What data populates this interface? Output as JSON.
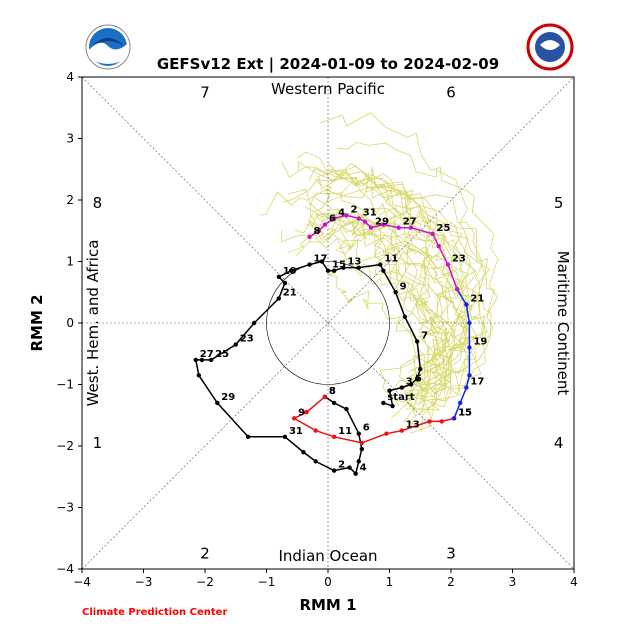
{
  "chart_data": {
    "type": "line",
    "title": "GEFSv12 Ext | 2024-01-09 to 2024-02-09",
    "xlabel": "RMM 1",
    "ylabel": "RMM 2",
    "xlim": [
      -4,
      4
    ],
    "ylim": [
      -4,
      4
    ],
    "xticks": [
      "−4",
      "−3",
      "−2",
      "−1",
      "0",
      "1",
      "2",
      "3",
      "4"
    ],
    "yticks": [
      "−4",
      "−3",
      "−2",
      "−1",
      "0",
      "1",
      "2",
      "3",
      "4"
    ],
    "regions": {
      "top": "Western Pacific",
      "bottom": "Indian Ocean",
      "left": "West. Hem. and Africa",
      "right": "Maritime Continent"
    },
    "phases": [
      "1",
      "2",
      "3",
      "4",
      "5",
      "6",
      "7",
      "8"
    ],
    "credit": "Climate Prediction Center",
    "colors": {
      "ensemble": "#d8d86a",
      "black": "#000000",
      "red": "#ee1111",
      "blue": "#1122ee",
      "magenta": "#cc11cc",
      "credit": "#ff0000"
    },
    "series": [
      {
        "color": "black",
        "points": [
          [
            0.9,
            -1.3,
            "start"
          ],
          [
            1.05,
            -1.35,
            ""
          ],
          [
            1.0,
            -1.1,
            ""
          ],
          [
            1.2,
            -1.05,
            "3"
          ],
          [
            1.35,
            -1.0,
            "5"
          ],
          [
            1.45,
            -0.9,
            ""
          ],
          [
            1.5,
            -0.75,
            ""
          ],
          [
            1.45,
            -0.3,
            "7"
          ],
          [
            1.25,
            0.1,
            ""
          ],
          [
            1.1,
            0.5,
            "9"
          ],
          [
            0.9,
            0.85,
            ""
          ],
          [
            0.85,
            0.95,
            "11"
          ],
          [
            0.5,
            0.9,
            ""
          ],
          [
            0.25,
            0.9,
            "13"
          ],
          [
            0.1,
            0.85,
            ""
          ],
          [
            0.0,
            0.85,
            "15"
          ],
          [
            -0.1,
            1.0,
            ""
          ],
          [
            -0.3,
            0.95,
            "17"
          ],
          [
            -0.6,
            0.85,
            ""
          ],
          [
            -0.8,
            0.75,
            "19"
          ],
          [
            -0.7,
            0.65,
            ""
          ],
          [
            -0.8,
            0.4,
            "21"
          ],
          [
            -1.2,
            0.0,
            ""
          ],
          [
            -1.5,
            -0.35,
            "23"
          ],
          [
            -1.9,
            -0.6,
            "25"
          ],
          [
            -2.05,
            -0.6,
            ""
          ],
          [
            -2.15,
            -0.6,
            "27"
          ],
          [
            -2.1,
            -0.85,
            ""
          ],
          [
            -1.8,
            -1.3,
            "29"
          ],
          [
            -1.3,
            -1.85,
            ""
          ],
          [
            -0.7,
            -1.85,
            "31"
          ],
          [
            -0.4,
            -2.1,
            ""
          ],
          [
            -0.2,
            -2.25,
            ""
          ],
          [
            0.1,
            -2.4,
            "2"
          ],
          [
            0.35,
            -2.35,
            ""
          ],
          [
            0.45,
            -2.45,
            "4"
          ],
          [
            0.5,
            -2.25,
            ""
          ],
          [
            0.55,
            -2.05,
            ""
          ],
          [
            0.5,
            -1.8,
            "6"
          ],
          [
            0.3,
            -1.4,
            ""
          ],
          [
            0.1,
            -1.3,
            ""
          ],
          [
            -0.05,
            -1.2,
            "8"
          ]
        ]
      },
      {
        "color": "red",
        "points": [
          [
            -0.05,
            -1.2,
            "8"
          ],
          [
            -0.35,
            -1.45,
            ""
          ],
          [
            -0.55,
            -1.55,
            "9"
          ],
          [
            -0.2,
            -1.75,
            ""
          ],
          [
            0.1,
            -1.85,
            "11"
          ],
          [
            0.55,
            -1.95,
            ""
          ],
          [
            0.95,
            -1.8,
            ""
          ],
          [
            1.2,
            -1.75,
            "13"
          ],
          [
            1.65,
            -1.6,
            ""
          ],
          [
            1.85,
            -1.6,
            ""
          ],
          [
            2.05,
            -1.55,
            "15"
          ]
        ]
      },
      {
        "color": "blue",
        "points": [
          [
            2.05,
            -1.55,
            "15"
          ],
          [
            2.15,
            -1.3,
            ""
          ],
          [
            2.25,
            -1.05,
            "17"
          ],
          [
            2.3,
            -0.85,
            ""
          ],
          [
            2.3,
            -0.4,
            "19"
          ],
          [
            2.3,
            0.0,
            ""
          ],
          [
            2.25,
            0.3,
            "21"
          ],
          [
            2.1,
            0.55,
            ""
          ]
        ]
      },
      {
        "color": "magenta",
        "points": [
          [
            2.1,
            0.55,
            ""
          ],
          [
            1.95,
            0.95,
            "23"
          ],
          [
            1.8,
            1.25,
            ""
          ],
          [
            1.7,
            1.45,
            "25"
          ],
          [
            1.35,
            1.55,
            ""
          ],
          [
            1.15,
            1.55,
            "27"
          ],
          [
            0.9,
            1.6,
            ""
          ],
          [
            0.7,
            1.55,
            "29"
          ],
          [
            0.6,
            1.65,
            ""
          ],
          [
            0.5,
            1.7,
            "31"
          ],
          [
            0.3,
            1.75,
            "2"
          ],
          [
            0.1,
            1.7,
            "4"
          ],
          [
            -0.05,
            1.6,
            "6"
          ],
          [
            -0.15,
            1.5,
            ""
          ],
          [
            -0.3,
            1.4,
            "8"
          ]
        ]
      }
    ]
  }
}
